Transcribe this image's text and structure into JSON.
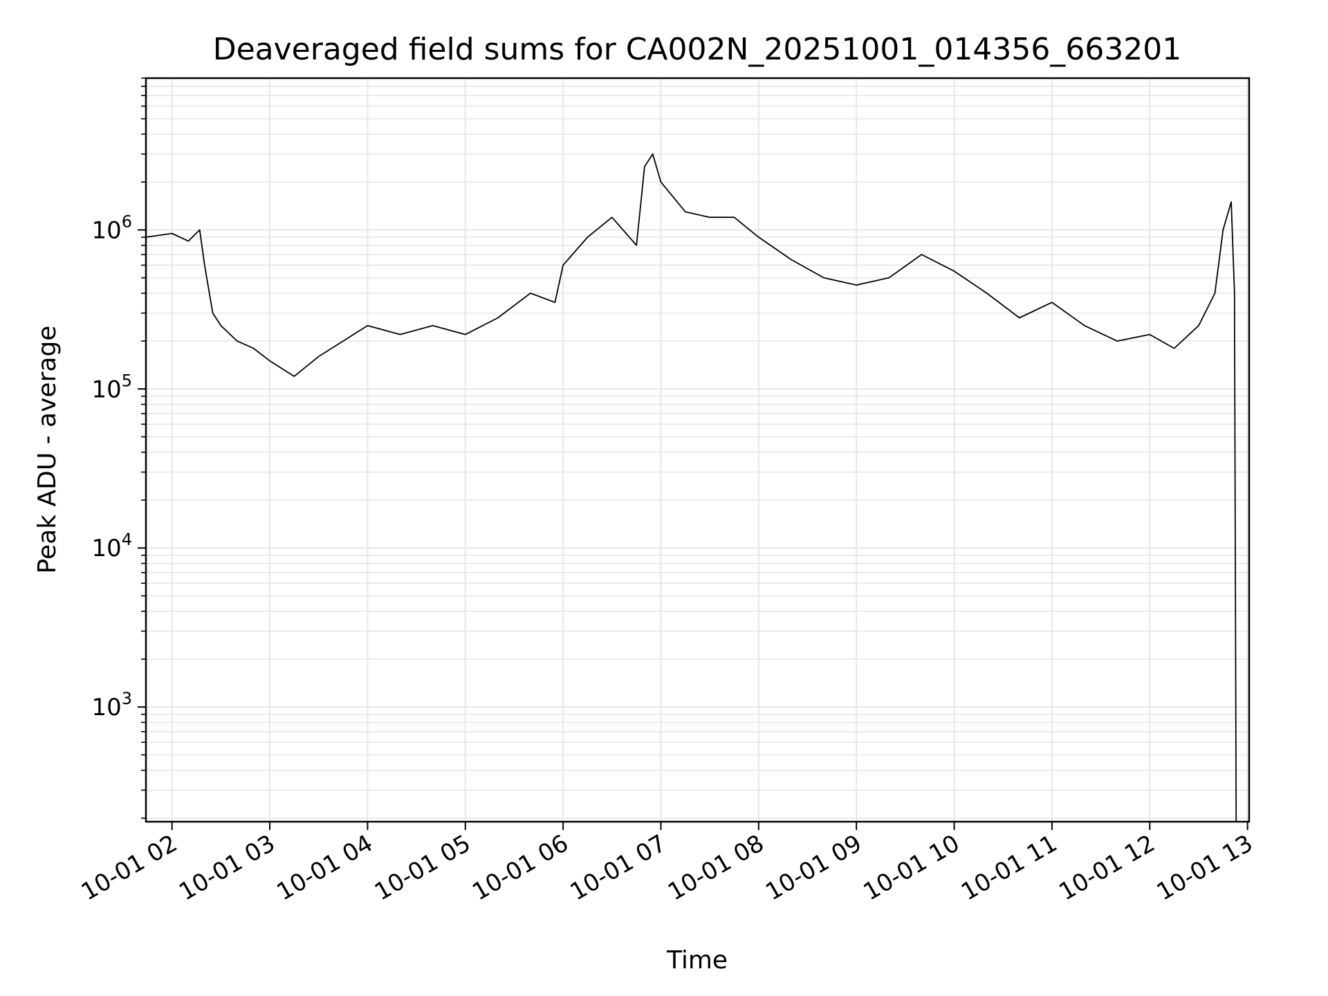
{
  "chart_data": {
    "type": "line",
    "title": "Deaveraged field sums for CA002N_20251001_014356_663201",
    "xlabel": "Time",
    "ylabel": "Peak ADU - average",
    "yscale": "log",
    "ylim": [
      190,
      9000000
    ],
    "xlim": [
      "10-01 01:44",
      "10-01 13:01"
    ],
    "grid": true,
    "line_color": "#000000",
    "grid_color": "#e6e6e6",
    "xticks": [
      {
        "time": "10-01 02:00",
        "label": "10-01 02"
      },
      {
        "time": "10-01 03:00",
        "label": "10-01 03"
      },
      {
        "time": "10-01 04:00",
        "label": "10-01 04"
      },
      {
        "time": "10-01 05:00",
        "label": "10-01 05"
      },
      {
        "time": "10-01 06:00",
        "label": "10-01 06"
      },
      {
        "time": "10-01 07:00",
        "label": "10-01 07"
      },
      {
        "time": "10-01 08:00",
        "label": "10-01 08"
      },
      {
        "time": "10-01 09:00",
        "label": "10-01 09"
      },
      {
        "time": "10-01 10:00",
        "label": "10-01 10"
      },
      {
        "time": "10-01 11:00",
        "label": "10-01 11"
      },
      {
        "time": "10-01 12:00",
        "label": "10-01 12"
      },
      {
        "time": "10-01 13:00",
        "label": "10-01 13"
      }
    ],
    "yticks": [
      {
        "value": 1000,
        "base": "10",
        "exp": "3"
      },
      {
        "value": 10000,
        "base": "10",
        "exp": "4"
      },
      {
        "value": 100000,
        "base": "10",
        "exp": "5"
      },
      {
        "value": 1000000,
        "base": "10",
        "exp": "6"
      }
    ],
    "series": [
      {
        "x": [
          "10-01 01:44",
          "10-01 02:00",
          "10-01 02:10",
          "10-01 02:17",
          "10-01 02:20",
          "10-01 02:25",
          "10-01 02:30",
          "10-01 02:40",
          "10-01 02:50",
          "10-01 03:00",
          "10-01 03:15",
          "10-01 03:30",
          "10-01 03:45",
          "10-01 04:00",
          "10-01 04:20",
          "10-01 04:40",
          "10-01 05:00",
          "10-01 05:20",
          "10-01 05:40",
          "10-01 05:55",
          "10-01 06:00",
          "10-01 06:15",
          "10-01 06:30",
          "10-01 06:45",
          "10-01 06:50",
          "10-01 06:55",
          "10-01 07:00",
          "10-01 07:15",
          "10-01 07:30",
          "10-01 07:45",
          "10-01 08:00",
          "10-01 08:20",
          "10-01 08:40",
          "10-01 09:00",
          "10-01 09:20",
          "10-01 09:40",
          "10-01 10:00",
          "10-01 10:20",
          "10-01 10:40",
          "10-01 11:00",
          "10-01 11:20",
          "10-01 11:40",
          "10-01 12:00",
          "10-01 12:15",
          "10-01 12:30",
          "10-01 12:40",
          "10-01 12:45",
          "10-01 12:50",
          "10-01 12:52",
          "10-01 12:53"
        ],
        "y": [
          900000,
          950000,
          850000,
          1000000,
          600000,
          300000,
          250000,
          200000,
          180000,
          150000,
          120000,
          160000,
          200000,
          250000,
          220000,
          250000,
          220000,
          280000,
          400000,
          350000,
          600000,
          900000,
          1200000,
          800000,
          2500000,
          3000000,
          2000000,
          1300000,
          1200000,
          1200000,
          900000,
          650000,
          500000,
          450000,
          500000,
          700000,
          550000,
          400000,
          280000,
          350000,
          250000,
          200000,
          220000,
          180000,
          250000,
          400000,
          1000000,
          1500000,
          400000,
          190
        ]
      }
    ]
  }
}
